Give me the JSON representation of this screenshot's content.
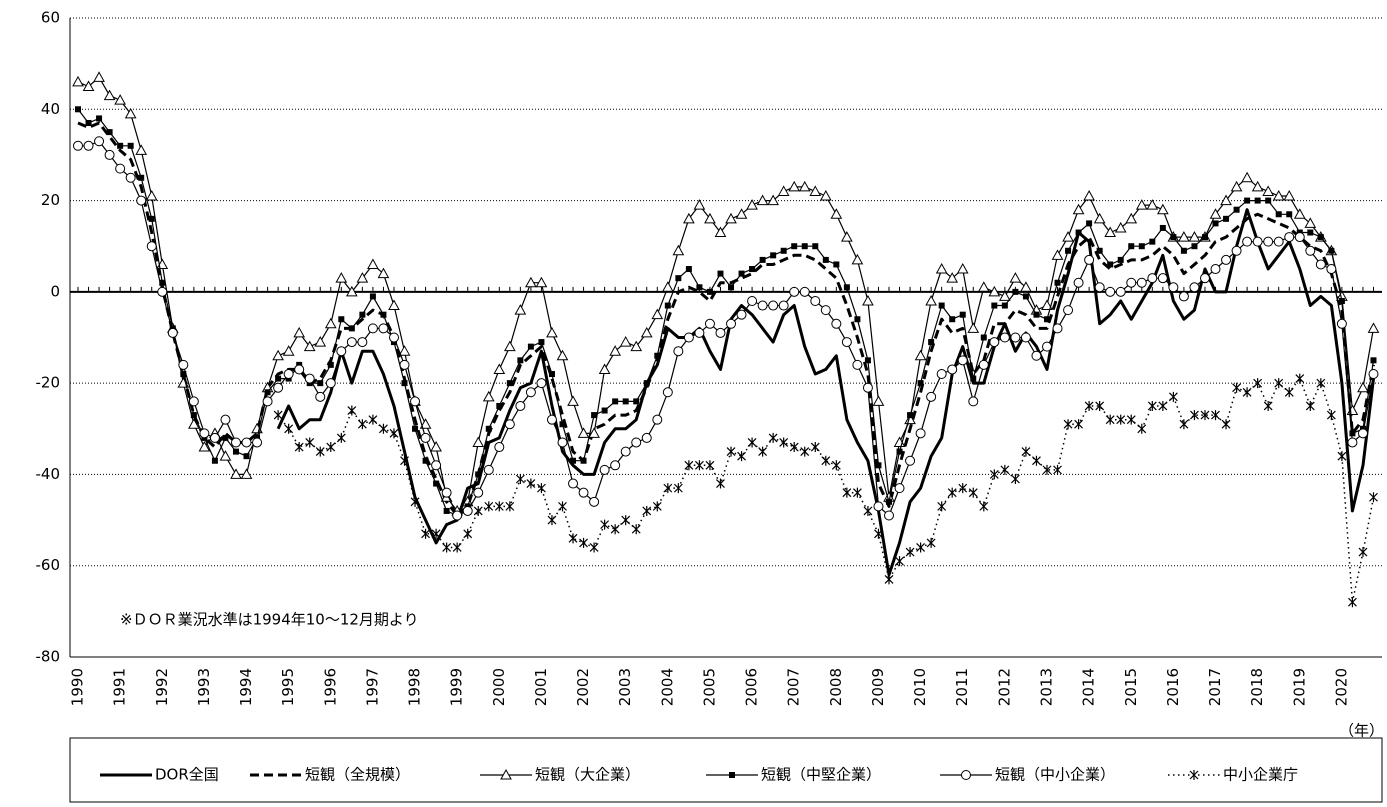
{
  "chart_data": {
    "type": "line",
    "annotation": "※ＤＯＲ業況水準は1994年10～12月期より",
    "x_label": "（年）",
    "ylim": [
      -80,
      60
    ],
    "yticks": [
      60,
      40,
      20,
      0,
      -20,
      -40,
      -60,
      -80
    ],
    "grid": true,
    "legend": "bottom",
    "categories": [
      "1990",
      null,
      null,
      null,
      "1991",
      null,
      null,
      null,
      "1992",
      null,
      null,
      null,
      "1993",
      null,
      null,
      null,
      "1994",
      null,
      null,
      null,
      "1995",
      null,
      null,
      null,
      "1996",
      null,
      null,
      null,
      "1997",
      null,
      null,
      null,
      "1998",
      null,
      null,
      null,
      "1999",
      null,
      null,
      null,
      "2000",
      null,
      null,
      null,
      "2001",
      null,
      null,
      null,
      "2002",
      null,
      null,
      null,
      "2003",
      null,
      null,
      null,
      "2004",
      null,
      null,
      null,
      "2005",
      null,
      null,
      null,
      "2006",
      null,
      null,
      null,
      "2007",
      null,
      null,
      null,
      "2008",
      null,
      null,
      null,
      "2009",
      null,
      null,
      null,
      "2010",
      null,
      null,
      null,
      "2011",
      null,
      null,
      null,
      "2012",
      null,
      null,
      null,
      "2013",
      null,
      null,
      null,
      "2014",
      null,
      null,
      null,
      "2015",
      null,
      null,
      null,
      "2016",
      null,
      null,
      null,
      "2017",
      null,
      null,
      null,
      "2018",
      null,
      null,
      null,
      "2019",
      null,
      null,
      null,
      "2020",
      null,
      null,
      null
    ],
    "series": [
      {
        "name": "DOR全国",
        "color": "#000000",
        "line_style": "solid",
        "line_width": 3,
        "marker": "none",
        "values": [
          null,
          null,
          null,
          null,
          null,
          null,
          null,
          null,
          null,
          null,
          null,
          null,
          null,
          null,
          null,
          null,
          null,
          null,
          null,
          -30,
          -25,
          -30,
          -28,
          -28,
          -22,
          -13,
          -20,
          -13,
          -13,
          -18,
          -25,
          -35,
          -45,
          -50,
          -55,
          -51,
          -50,
          -43,
          -42,
          -33,
          -32,
          -26,
          -21,
          -20,
          -13,
          -25,
          -35,
          -38,
          -40,
          -40,
          -33,
          -30,
          -30,
          -28,
          -20,
          -16,
          -8,
          -10,
          -10,
          -8,
          -13,
          -17,
          -6,
          -3,
          -5,
          -8,
          -11,
          -5,
          -3,
          -12,
          -18,
          -17,
          -14,
          -28,
          -33,
          -37,
          -48,
          -62,
          -55,
          -46,
          -43,
          -36,
          -32,
          -18,
          -12,
          -20,
          -20,
          -12,
          -7,
          -13,
          -9,
          -12,
          -17,
          -4,
          4,
          13,
          11,
          -7,
          -5,
          -2,
          -6,
          -2,
          2,
          8,
          -2,
          -6,
          -4,
          5,
          0,
          0,
          10,
          18,
          11,
          5,
          8,
          11,
          5,
          -3,
          -1,
          -3,
          -20,
          -48,
          -38,
          -19
        ]
      },
      {
        "name": "短観（全規模）",
        "color": "#000000",
        "line_style": "dash",
        "line_width": 3,
        "marker": "none",
        "values": [
          37,
          36,
          37,
          34,
          31,
          29,
          23,
          13,
          1,
          -9,
          -18,
          -27,
          -32,
          -34,
          -31,
          -33,
          -33,
          -31,
          -21,
          -18,
          -17,
          -17,
          -20,
          -19,
          -15,
          -8,
          -8,
          -6,
          -4,
          -5,
          -10,
          -19,
          -28,
          -36,
          -41,
          -46,
          -49,
          -47,
          -40,
          -31,
          -26,
          -22,
          -16,
          -14,
          -12,
          -19,
          -27,
          -35,
          -37,
          -30,
          -29,
          -27,
          -27,
          -26,
          -21,
          -15,
          -6,
          0,
          1,
          0,
          -2,
          2,
          2,
          3,
          4,
          6,
          6,
          7,
          8,
          8,
          7,
          5,
          3,
          -3,
          -10,
          -18,
          -42,
          -47,
          -38,
          -30,
          -22,
          -13,
          -6,
          -9,
          -8,
          -18,
          -15,
          -7,
          -7,
          -4,
          -5,
          -8,
          -8,
          -1,
          6,
          10,
          12,
          7,
          5,
          6,
          7,
          7,
          8,
          10,
          8,
          4,
          6,
          8,
          11,
          12,
          14,
          16,
          17,
          16,
          15,
          14,
          12,
          10,
          9,
          4,
          -4,
          -31,
          -28,
          -16
        ]
      },
      {
        "name": "短観（大企業）",
        "color": "#000000",
        "line_style": "solid",
        "line_width": 1.2,
        "marker": "triangle",
        "values": [
          46,
          45,
          47,
          43,
          42,
          39,
          31,
          21,
          6,
          -8,
          -20,
          -29,
          -34,
          -31,
          -36,
          -40,
          -40,
          -30,
          -21,
          -14,
          -13,
          -9,
          -12,
          -11,
          -7,
          3,
          0,
          3,
          6,
          4,
          -3,
          -13,
          -24,
          -29,
          -34,
          -45,
          -48,
          -46,
          -33,
          -23,
          -17,
          -12,
          -4,
          2,
          2,
          -9,
          -14,
          -24,
          -31,
          -31,
          -17,
          -13,
          -11,
          -12,
          -9,
          -5,
          1,
          9,
          16,
          19,
          16,
          13,
          16,
          17,
          19,
          20,
          20,
          22,
          23,
          23,
          22,
          21,
          17,
          12,
          7,
          -2,
          -24,
          -45,
          -33,
          -28,
          -14,
          -2,
          5,
          3,
          5,
          -8,
          1,
          0,
          -1,
          3,
          1,
          -4,
          -3,
          8,
          12,
          18,
          21,
          16,
          13,
          14,
          16,
          19,
          19,
          18,
          12,
          12,
          12,
          12,
          17,
          20,
          23,
          25,
          23,
          22,
          21,
          21,
          17,
          15,
          12,
          9,
          -1,
          -26,
          -21,
          -8
        ]
      },
      {
        "name": "短観（中堅企業）",
        "color": "#000000",
        "line_style": "solid",
        "line_width": 1.2,
        "marker": "square",
        "values": [
          40,
          37,
          38,
          35,
          32,
          32,
          25,
          16,
          2,
          -8,
          -18,
          -27,
          -32,
          -37,
          -32,
          -35,
          -36,
          -32,
          -22,
          -19,
          -19,
          -16,
          -20,
          -20,
          -16,
          -6,
          -8,
          -5,
          -1,
          -5,
          -11,
          -20,
          -30,
          -37,
          -42,
          -48,
          -49,
          -47,
          -40,
          -30,
          -25,
          -20,
          -15,
          -12,
          -11,
          -18,
          -29,
          -37,
          -37,
          -27,
          -26,
          -24,
          -24,
          -24,
          -20,
          -14,
          -3,
          3,
          5,
          1,
          0,
          4,
          1,
          4,
          5,
          7,
          8,
          9,
          10,
          10,
          10,
          7,
          6,
          1,
          -6,
          -15,
          -38,
          -46,
          -35,
          -27,
          -20,
          -11,
          -3,
          -6,
          -5,
          -19,
          -10,
          -3,
          -3,
          0,
          -1,
          -5,
          -6,
          2,
          9,
          13,
          15,
          9,
          6,
          7,
          10,
          10,
          11,
          14,
          12,
          9,
          10,
          12,
          15,
          16,
          18,
          20,
          20,
          20,
          17,
          17,
          13,
          13,
          12,
          9,
          -2,
          -31,
          -30,
          -15
        ]
      },
      {
        "name": "短観（中小企業）",
        "color": "#000000",
        "line_style": "solid",
        "line_width": 1.2,
        "marker": "circle",
        "values": [
          32,
          32,
          33,
          30,
          27,
          25,
          20,
          10,
          0,
          -9,
          -16,
          -24,
          -31,
          -32,
          -28,
          -33,
          -33,
          -33,
          -24,
          -21,
          -18,
          -17,
          -19,
          -23,
          -20,
          -13,
          -11,
          -11,
          -8,
          -8,
          -10,
          -16,
          -24,
          -32,
          -38,
          -44,
          -49,
          -48,
          -44,
          -39,
          -34,
          -29,
          -25,
          -22,
          -20,
          -28,
          -33,
          -42,
          -44,
          -46,
          -39,
          -38,
          -35,
          -33,
          -32,
          -28,
          -22,
          -13,
          -10,
          -9,
          -7,
          -9,
          -7,
          -5,
          -2,
          -3,
          -3,
          -3,
          0,
          0,
          -2,
          -4,
          -7,
          -11,
          -16,
          -21,
          -47,
          -49,
          -43,
          -37,
          -31,
          -23,
          -18,
          -17,
          -15,
          -24,
          -16,
          -11,
          -10,
          -10,
          -10,
          -14,
          -12,
          -8,
          -4,
          2,
          7,
          1,
          0,
          0,
          2,
          2,
          3,
          3,
          1,
          -1,
          1,
          3,
          5,
          7,
          9,
          11,
          11,
          11,
          11,
          12,
          12,
          9,
          6,
          5,
          -7,
          -33,
          -31,
          -18
        ]
      },
      {
        "name": "中小企業庁",
        "color": "#000000",
        "line_style": "dot",
        "line_width": 1.5,
        "marker": "asterisk",
        "values": [
          null,
          null,
          null,
          null,
          null,
          null,
          null,
          null,
          null,
          null,
          null,
          null,
          null,
          null,
          null,
          null,
          null,
          null,
          null,
          -27,
          -30,
          -34,
          -33,
          -35,
          -34,
          -32,
          -26,
          -29,
          -28,
          -30,
          -31,
          -37,
          -46,
          -53,
          -53,
          -56,
          -56,
          -53,
          -48,
          -47,
          -47,
          -47,
          -41,
          -42,
          -43,
          -50,
          -47,
          -54,
          -55,
          -56,
          -51,
          -52,
          -50,
          -52,
          -48,
          -47,
          -43,
          -43,
          -38,
          -38,
          -38,
          -42,
          -35,
          -36,
          -33,
          -35,
          -32,
          -33,
          -34,
          -35,
          -34,
          -37,
          -38,
          -44,
          -44,
          -48,
          -53,
          -63,
          -59,
          -57,
          -56,
          -55,
          -47,
          -44,
          -43,
          -44,
          -47,
          -40,
          -39,
          -41,
          -35,
          -37,
          -39,
          -39,
          -29,
          -29,
          -25,
          -25,
          -28,
          -28,
          -28,
          -30,
          -25,
          -25,
          -23,
          -29,
          -27,
          -27,
          -27,
          -29,
          -21,
          -22,
          -20,
          -25,
          -20,
          -22,
          -19,
          -25,
          -20,
          -27,
          -36,
          -68,
          -57,
          -45
        ]
      }
    ]
  }
}
